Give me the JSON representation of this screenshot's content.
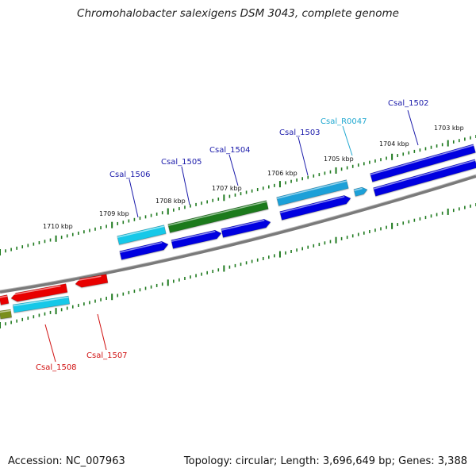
{
  "title": "Chromohalobacter salexigens DSM 3043, complete genome",
  "footer": {
    "accession": "Accession: NC_007963",
    "summary": "Topology: circular; Length: 3,696,649 bp; Genes: 3,388"
  },
  "colors": {
    "forward_cds": "#0000e0",
    "forward_cds_alt": "#1f7a1f",
    "reverse_cds": "#e80000",
    "rna_light": "#18c8e8",
    "rna_sky": "#1aa0d8",
    "backbone": "#808080",
    "tick": "#1f7a1f",
    "forward_label": "#1a1aaa",
    "reverse_label": "#d01010",
    "rna_label": "#20a8d0"
  },
  "scale_labels": [
    "1703 kbp",
    "1704 kbp",
    "1705 kbp",
    "1706 kbp",
    "1707 kbp",
    "1708 kbp",
    "1709 kbp",
    "1710 kbp"
  ],
  "gene_labels": {
    "csal_1502": "Csal_1502",
    "csal_r0047": "Csal_R0047",
    "csal_1503": "Csal_1503",
    "csal_1504": "Csal_1504",
    "csal_1505": "Csal_1505",
    "csal_1506": "Csal_1506",
    "csal_1507": "Csal_1507",
    "csal_1508": "Csal_1508"
  }
}
